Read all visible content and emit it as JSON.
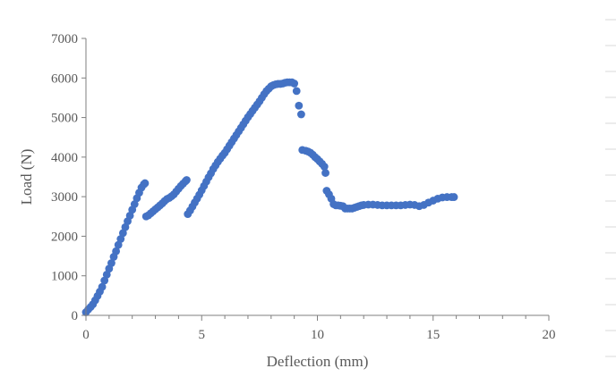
{
  "chart_data": {
    "type": "scatter",
    "xlabel": "Deflection (mm)",
    "ylabel": "Load (N)",
    "xlim": [
      0,
      20
    ],
    "ylim": [
      0,
      7000
    ],
    "xticks": [
      "0",
      "5",
      "10",
      "15",
      "20"
    ],
    "yticks": [
      "0",
      "1000",
      "2000",
      "3000",
      "4000",
      "5000",
      "6000",
      "7000"
    ],
    "grid": false,
    "legend": "none",
    "marker_color": "#4472c4",
    "series": [
      {
        "points": [
          [
            0.0,
            80
          ],
          [
            0.1,
            150
          ],
          [
            0.2,
            210
          ],
          [
            0.3,
            280
          ],
          [
            0.4,
            380
          ],
          [
            0.5,
            490
          ],
          [
            0.6,
            600
          ],
          [
            0.7,
            720
          ],
          [
            0.8,
            880
          ],
          [
            0.9,
            1030
          ],
          [
            1.0,
            1180
          ],
          [
            1.1,
            1320
          ],
          [
            1.2,
            1480
          ],
          [
            1.3,
            1620
          ],
          [
            1.4,
            1780
          ],
          [
            1.5,
            1930
          ],
          [
            1.6,
            2080
          ],
          [
            1.7,
            2230
          ],
          [
            1.8,
            2380
          ],
          [
            1.9,
            2520
          ],
          [
            2.0,
            2670
          ],
          [
            2.1,
            2810
          ],
          [
            2.2,
            2960
          ],
          [
            2.3,
            3100
          ],
          [
            2.4,
            3230
          ],
          [
            2.5,
            3310
          ],
          [
            2.55,
            3340
          ],
          [
            2.6,
            2500
          ],
          [
            2.7,
            2530
          ],
          [
            2.8,
            2580
          ],
          [
            2.9,
            2630
          ],
          [
            3.0,
            2680
          ],
          [
            3.1,
            2730
          ],
          [
            3.2,
            2780
          ],
          [
            3.3,
            2830
          ],
          [
            3.4,
            2890
          ],
          [
            3.5,
            2940
          ],
          [
            3.6,
            2970
          ],
          [
            3.7,
            3010
          ],
          [
            3.8,
            3060
          ],
          [
            3.9,
            3130
          ],
          [
            4.0,
            3200
          ],
          [
            4.1,
            3270
          ],
          [
            4.2,
            3330
          ],
          [
            4.3,
            3390
          ],
          [
            4.35,
            3420
          ],
          [
            4.4,
            2560
          ],
          [
            4.5,
            2650
          ],
          [
            4.6,
            2750
          ],
          [
            4.7,
            2850
          ],
          [
            4.8,
            2950
          ],
          [
            4.9,
            3050
          ],
          [
            5.0,
            3160
          ],
          [
            5.1,
            3270
          ],
          [
            5.2,
            3380
          ],
          [
            5.3,
            3490
          ],
          [
            5.4,
            3590
          ],
          [
            5.5,
            3700
          ],
          [
            5.6,
            3790
          ],
          [
            5.7,
            3880
          ],
          [
            5.8,
            3960
          ],
          [
            5.9,
            4040
          ],
          [
            6.0,
            4110
          ],
          [
            6.1,
            4200
          ],
          [
            6.2,
            4290
          ],
          [
            6.3,
            4380
          ],
          [
            6.4,
            4470
          ],
          [
            6.5,
            4560
          ],
          [
            6.6,
            4650
          ],
          [
            6.7,
            4740
          ],
          [
            6.8,
            4830
          ],
          [
            6.9,
            4920
          ],
          [
            7.0,
            5010
          ],
          [
            7.1,
            5090
          ],
          [
            7.2,
            5170
          ],
          [
            7.3,
            5250
          ],
          [
            7.4,
            5330
          ],
          [
            7.5,
            5410
          ],
          [
            7.6,
            5500
          ],
          [
            7.7,
            5590
          ],
          [
            7.8,
            5670
          ],
          [
            7.9,
            5730
          ],
          [
            8.0,
            5790
          ],
          [
            8.1,
            5820
          ],
          [
            8.2,
            5840
          ],
          [
            8.3,
            5850
          ],
          [
            8.4,
            5850
          ],
          [
            8.5,
            5860
          ],
          [
            8.6,
            5880
          ],
          [
            8.7,
            5890
          ],
          [
            8.8,
            5890
          ],
          [
            8.9,
            5890
          ],
          [
            9.0,
            5860
          ],
          [
            9.1,
            5670
          ],
          [
            9.2,
            5300
          ],
          [
            9.3,
            5080
          ],
          [
            9.35,
            4180
          ],
          [
            9.5,
            4160
          ],
          [
            9.6,
            4140
          ],
          [
            9.7,
            4110
          ],
          [
            9.8,
            4060
          ],
          [
            9.9,
            4000
          ],
          [
            10.0,
            3950
          ],
          [
            10.1,
            3890
          ],
          [
            10.2,
            3830
          ],
          [
            10.3,
            3760
          ],
          [
            10.35,
            3600
          ],
          [
            10.4,
            3150
          ],
          [
            10.5,
            3060
          ],
          [
            10.6,
            2950
          ],
          [
            10.7,
            2810
          ],
          [
            10.8,
            2780
          ],
          [
            10.9,
            2780
          ],
          [
            11.0,
            2770
          ],
          [
            11.1,
            2760
          ],
          [
            11.2,
            2700
          ],
          [
            11.3,
            2700
          ],
          [
            11.4,
            2700
          ],
          [
            11.5,
            2700
          ],
          [
            11.6,
            2720
          ],
          [
            11.7,
            2740
          ],
          [
            11.8,
            2760
          ],
          [
            11.9,
            2780
          ],
          [
            12.0,
            2790
          ],
          [
            12.2,
            2800
          ],
          [
            12.4,
            2800
          ],
          [
            12.6,
            2790
          ],
          [
            12.8,
            2780
          ],
          [
            13.0,
            2780
          ],
          [
            13.2,
            2780
          ],
          [
            13.4,
            2780
          ],
          [
            13.6,
            2780
          ],
          [
            13.8,
            2790
          ],
          [
            14.0,
            2800
          ],
          [
            14.2,
            2790
          ],
          [
            14.4,
            2760
          ],
          [
            14.6,
            2790
          ],
          [
            14.8,
            2850
          ],
          [
            15.0,
            2900
          ],
          [
            15.2,
            2950
          ],
          [
            15.4,
            2980
          ],
          [
            15.6,
            2990
          ],
          [
            15.8,
            2990
          ],
          [
            15.9,
            2990
          ]
        ]
      }
    ]
  }
}
